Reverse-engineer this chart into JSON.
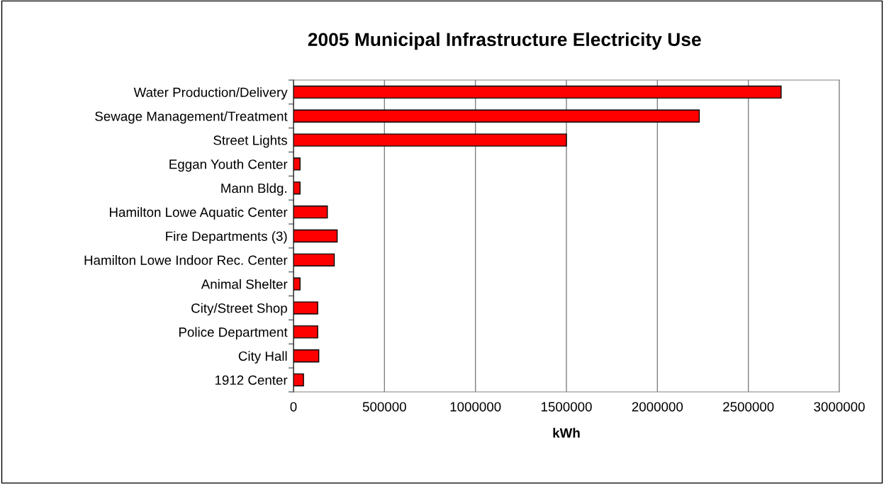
{
  "chart_data": {
    "type": "bar",
    "orientation": "horizontal",
    "title": "2005 Municipal Infrastructure Electricity Use",
    "xlabel": "kWh",
    "categories": [
      "Water Production/Delivery",
      "Sewage Management/Treatment",
      "Street Lights",
      "Eggan Youth Center",
      "Mann Bldg.",
      "Hamilton Lowe Aquatic Center",
      "Fire Departments (3)",
      "Hamilton Lowe Indoor Rec. Center",
      "Animal Shelter",
      "City/Street Shop",
      "Police Department",
      "City Hall",
      "1912 Center"
    ],
    "values": [
      2680000,
      2230000,
      1500000,
      36000,
      36000,
      186000,
      240000,
      224000,
      36000,
      133000,
      133000,
      139000,
      55000
    ],
    "color": "#ff0000",
    "xlim": [
      0,
      3000000
    ],
    "xticks": [
      0,
      500000,
      1000000,
      1500000,
      2000000,
      2500000,
      3000000
    ],
    "grid": "x"
  }
}
